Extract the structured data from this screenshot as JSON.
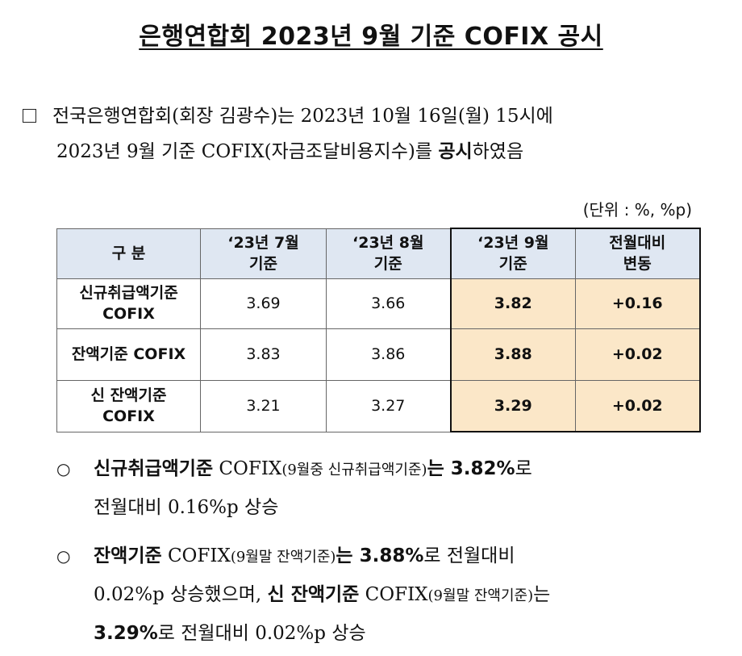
{
  "title": "은행연합회 2023년 9월 기준 COFIX 공시",
  "intro": {
    "line1_a": "전국은행연합회(회장 김광수)는 2023년 10월 16일(월) 15시",
    "line1_b": "에",
    "line2_a": "2023년 9월 기준 COFIX(자금조달비용지수)를 ",
    "line2_b": "공시",
    "line2_c": "하였음"
  },
  "unit": "(단위 : %, %p)",
  "table": {
    "headers": {
      "category": "구 분",
      "jul": [
        "‘23년 7월",
        "기준"
      ],
      "aug": [
        "‘23년 8월",
        "기준"
      ],
      "sep": [
        "‘23년 9월",
        "기준"
      ],
      "change": [
        "전월대비",
        "변동"
      ]
    },
    "rows": [
      {
        "label": [
          "신규취급액기준",
          "COFIX"
        ],
        "jul": "3.69",
        "aug": "3.66",
        "sep": "3.82",
        "change": "+0.16"
      },
      {
        "label": [
          "잔액기준 COFIX"
        ],
        "jul": "3.83",
        "aug": "3.86",
        "sep": "3.88",
        "change": "+0.02"
      },
      {
        "label": [
          "신 잔액기준",
          "COFIX"
        ],
        "jul": "3.21",
        "aug": "3.27",
        "sep": "3.29",
        "change": "+0.02"
      }
    ]
  },
  "bullets": {
    "marker": "○",
    "b1": {
      "lead": "신규취급액기준",
      "cofix": " COFIX",
      "paren": "(9월중 신규취급액기준)",
      "neun": "는",
      "val": " 3.82%",
      "ro": "로",
      "line2": "전월대비 0.16%p 상승"
    },
    "b2": {
      "lead": "잔액기준",
      "cofix": " COFIX",
      "paren": "(9월말 잔액기준)",
      "neun": "는",
      "val": " 3.88%",
      "ro": "로 전월대비",
      "line2_a": "0.02%p 상승했으며, ",
      "line2_b": "신 잔액기준",
      "line2_c": " COFIX",
      "line2_paren": "(9월말 잔액기준)",
      "line2_d": "는",
      "line3_val": "3.29%",
      "line3_rest": "로 전월대비 0.02%p 상승"
    }
  }
}
